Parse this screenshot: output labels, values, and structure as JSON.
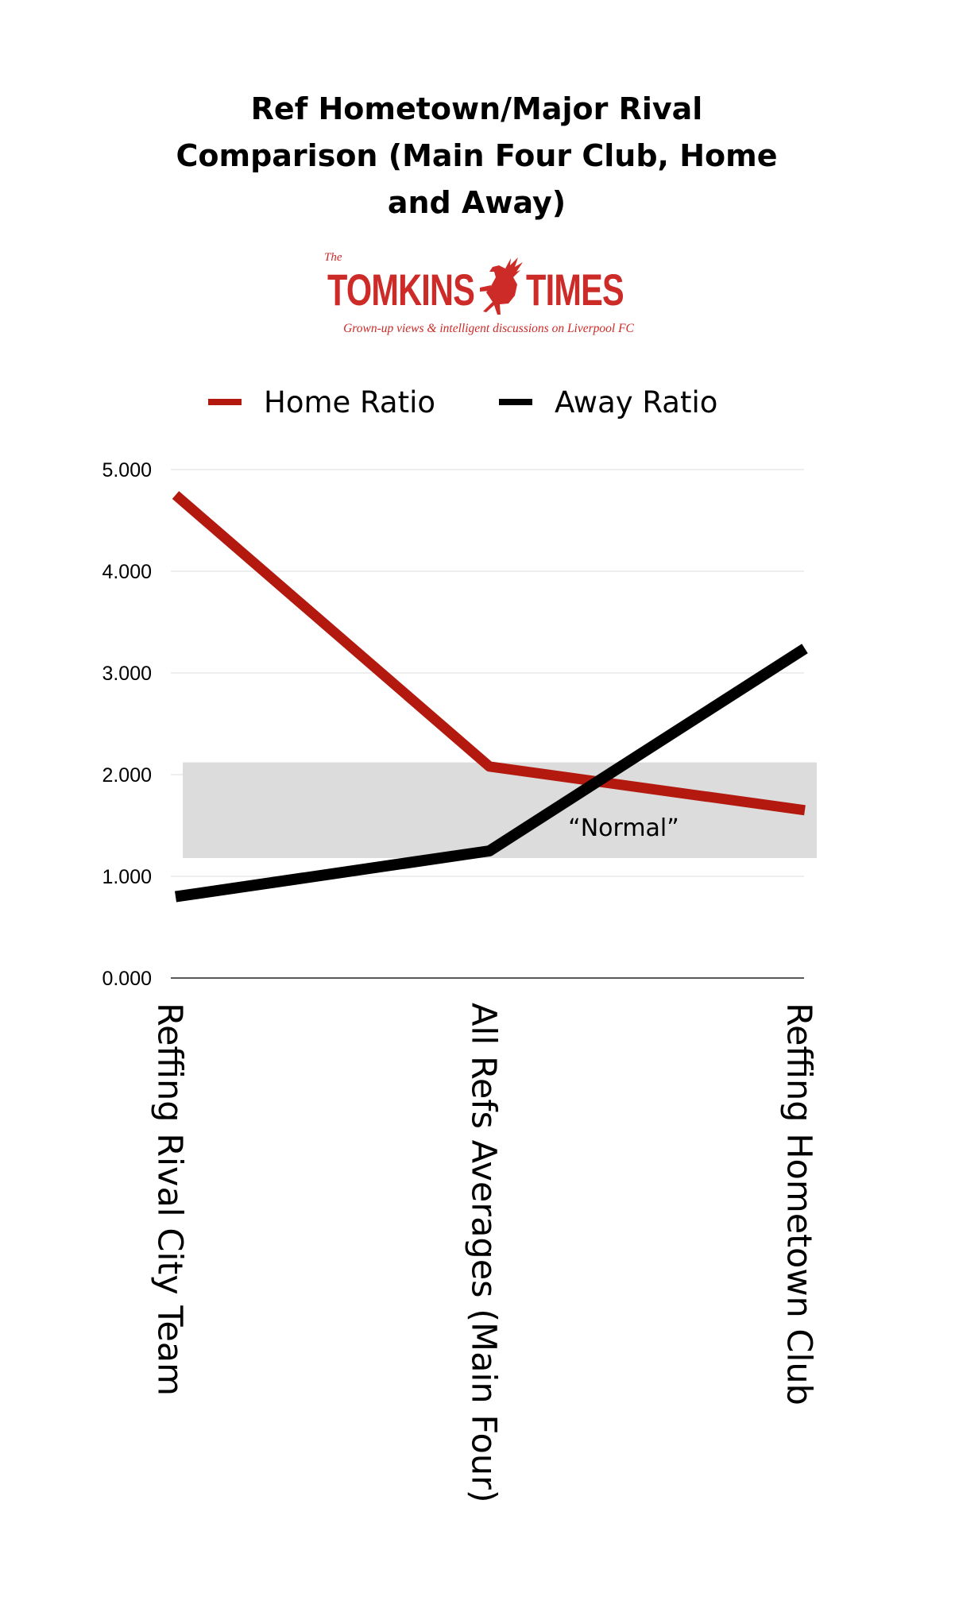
{
  "title_lines": [
    "Ref Hometown/Major Rival",
    "Comparison (Main Four Club, Home",
    "and Away)"
  ],
  "logo": {
    "the": "The",
    "word_left": "TOMKINS",
    "word_right": "TIMES",
    "tagline": "Grown-up views & intelligent discussions on Liverpool FC",
    "emblem": "liverbird-icon",
    "color": "#cc2b28"
  },
  "colors": {
    "home": "#b3190f",
    "away": "#000000",
    "normal_band": "#dcdcdc",
    "grid": "#dddddd",
    "axis": "#222222"
  },
  "chart_data": {
    "type": "line",
    "title": "Ref Hometown/Major Rival Comparison (Main Four Club, Home and Away)",
    "categories": [
      "Reffing Rival City Team",
      "All Refs Averages (Main Four)",
      "Reffing Hometown Club"
    ],
    "series": [
      {
        "name": "Home Ratio",
        "values": [
          4.75,
          2.08,
          1.65
        ]
      },
      {
        "name": "Away Ratio",
        "values": [
          0.8,
          1.25,
          3.24
        ]
      }
    ],
    "ylim": [
      0,
      5
    ],
    "yticks": [
      5,
      4,
      3,
      2,
      1,
      0
    ],
    "ytick_labels": [
      "5.000",
      "4.000",
      "3.000",
      "2.000",
      "1.000",
      "0.000"
    ],
    "annotation": {
      "text": "“Normal”",
      "band": [
        1.18,
        2.12
      ]
    },
    "legend_position": "top",
    "grid": true,
    "xlabel": "",
    "ylabel": ""
  }
}
